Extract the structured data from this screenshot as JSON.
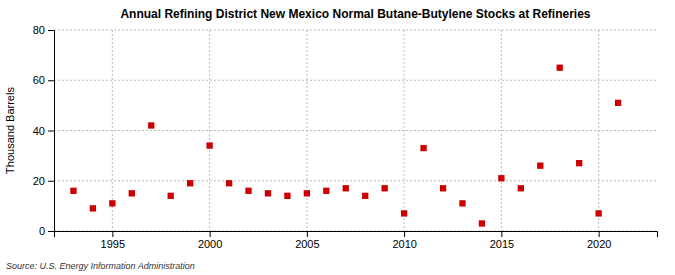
{
  "chart_data": {
    "type": "scatter",
    "title": "Annual Refining District New Mexico Normal Butane-Butylene Stocks at Refineries",
    "ylabel": "Thousand Barrels",
    "annotations": [
      "Source: U.S. Energy Information Administration"
    ],
    "x": [
      1993,
      1994,
      1995,
      1996,
      1997,
      1998,
      1999,
      2000,
      2001,
      2002,
      2003,
      2004,
      2005,
      2006,
      2007,
      2008,
      2009,
      2010,
      2011,
      2012,
      2013,
      2014,
      2015,
      2016,
      2017,
      2018,
      2019,
      2020,
      2021
    ],
    "values": [
      16,
      9,
      11,
      15,
      42,
      14,
      19,
      34,
      19,
      16,
      15,
      14,
      15,
      16,
      17,
      14,
      17,
      7,
      33,
      17,
      11,
      3,
      21,
      17,
      26,
      65,
      27,
      7,
      51
    ],
    "color": "#cc0000",
    "marker": "square",
    "xlim": [
      1992,
      2023
    ],
    "ylim": [
      0,
      80
    ],
    "xticks": [
      1995,
      2000,
      2005,
      2010,
      2015,
      2020
    ],
    "yticks": [
      0,
      20,
      40,
      60,
      80
    ],
    "grid": true
  }
}
